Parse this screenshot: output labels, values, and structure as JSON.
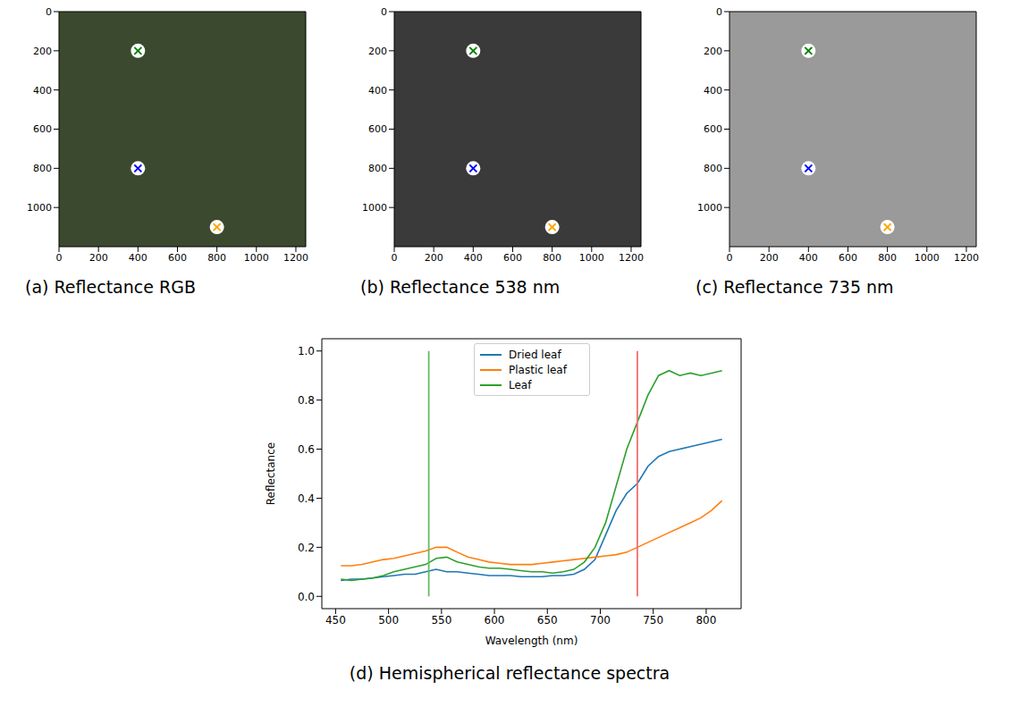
{
  "chart_data": [
    {
      "type": "scatter",
      "title": "(a) Reflectance RGB",
      "xlim": [
        0,
        1250
      ],
      "ylim": [
        1200,
        0
      ],
      "xticks": [
        0,
        200,
        400,
        600,
        800,
        1000,
        1200
      ],
      "yticks": [
        0,
        200,
        400,
        600,
        800,
        1000
      ],
      "grid": false,
      "marker": "x",
      "points": [
        {
          "x": 400,
          "y": 200,
          "color": "#008000"
        },
        {
          "x": 400,
          "y": 800,
          "color": "#0000ff"
        },
        {
          "x": 800,
          "y": 1100,
          "color": "#ffa500"
        }
      ]
    },
    {
      "type": "scatter",
      "title": "(b) Reflectance 538 nm",
      "xlim": [
        0,
        1250
      ],
      "ylim": [
        1200,
        0
      ],
      "xticks": [
        0,
        200,
        400,
        600,
        800,
        1000,
        1200
      ],
      "yticks": [
        0,
        200,
        400,
        600,
        800,
        1000
      ],
      "grid": false,
      "marker": "x",
      "points": [
        {
          "x": 400,
          "y": 200,
          "color": "#008000"
        },
        {
          "x": 400,
          "y": 800,
          "color": "#0000ff"
        },
        {
          "x": 800,
          "y": 1100,
          "color": "#ffa500"
        }
      ]
    },
    {
      "type": "scatter",
      "title": "(c) Reflectance 735 nm",
      "xlim": [
        0,
        1250
      ],
      "ylim": [
        1200,
        0
      ],
      "xticks": [
        0,
        200,
        400,
        600,
        800,
        1000,
        1200
      ],
      "yticks": [
        0,
        200,
        400,
        600,
        800,
        1000
      ],
      "grid": false,
      "marker": "x",
      "points": [
        {
          "x": 400,
          "y": 200,
          "color": "#008000"
        },
        {
          "x": 400,
          "y": 800,
          "color": "#0000ff"
        },
        {
          "x": 800,
          "y": 1100,
          "color": "#ffa500"
        }
      ]
    },
    {
      "type": "line",
      "title": "(d) Hemispherical reflectance spectra",
      "x_label": "Wavelength (nm)",
      "y_label": "Reflectance",
      "xlim": [
        437,
        833
      ],
      "ylim": [
        -0.05,
        1.05
      ],
      "xticks": [
        450,
        500,
        550,
        600,
        650,
        700,
        750,
        800
      ],
      "yticks": [
        {
          "value": 0,
          "label": "0.0"
        },
        0.2,
        0.4,
        0.6,
        0.8,
        {
          "value": 1,
          "label": "1.0"
        }
      ],
      "grid": false,
      "legend": "top",
      "x": [
        455,
        465,
        475,
        485,
        495,
        505,
        515,
        525,
        535,
        545,
        555,
        565,
        575,
        585,
        595,
        605,
        615,
        625,
        635,
        645,
        655,
        665,
        675,
        685,
        695,
        705,
        715,
        725,
        735,
        745,
        755,
        765,
        775,
        785,
        795,
        805,
        815
      ],
      "series": [
        {
          "name": "Dried leaf",
          "color": "#1f77b4",
          "values": [
            0.065,
            0.07,
            0.07,
            0.075,
            0.08,
            0.085,
            0.09,
            0.09,
            0.1,
            0.11,
            0.1,
            0.1,
            0.095,
            0.09,
            0.085,
            0.085,
            0.085,
            0.08,
            0.08,
            0.08,
            0.085,
            0.085,
            0.09,
            0.11,
            0.15,
            0.25,
            0.35,
            0.42,
            0.46,
            0.53,
            0.57,
            0.59,
            0.6,
            0.61,
            0.62,
            0.63,
            0.64
          ]
        },
        {
          "name": "Plastic leaf",
          "color": "#ff7f0e",
          "values": [
            0.125,
            0.125,
            0.13,
            0.14,
            0.15,
            0.155,
            0.165,
            0.175,
            0.185,
            0.2,
            0.2,
            0.18,
            0.16,
            0.15,
            0.14,
            0.135,
            0.13,
            0.13,
            0.13,
            0.135,
            0.14,
            0.145,
            0.15,
            0.155,
            0.16,
            0.165,
            0.17,
            0.18,
            0.2,
            0.22,
            0.24,
            0.26,
            0.28,
            0.3,
            0.32,
            0.35,
            0.39
          ]
        },
        {
          "name": "Leaf",
          "color": "#2ca02c",
          "values": [
            0.07,
            0.065,
            0.07,
            0.075,
            0.085,
            0.1,
            0.11,
            0.12,
            0.13,
            0.155,
            0.16,
            0.14,
            0.13,
            0.12,
            0.115,
            0.115,
            0.11,
            0.105,
            0.1,
            0.1,
            0.095,
            0.1,
            0.11,
            0.14,
            0.2,
            0.3,
            0.45,
            0.6,
            0.71,
            0.82,
            0.9,
            0.92,
            0.9,
            0.91,
            0.9,
            0.91,
            0.92
          ]
        }
      ],
      "vertical_lines": [
        {
          "x": 538,
          "ymin": 0,
          "ymax": 1,
          "color": "#66bb66"
        },
        {
          "x": 735,
          "ymin": 0,
          "ymax": 1,
          "color": "#f07070"
        }
      ]
    }
  ]
}
